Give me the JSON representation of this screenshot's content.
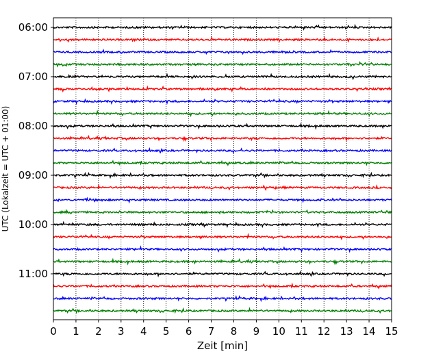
{
  "chart_data": {
    "type": "line",
    "chart_kind": "helicorder (seismogram drum plot)",
    "xlabel": "Zeit  [min]",
    "ylabel": "UTC (Lokalzeit = UTC + 01:00)",
    "xlim": [
      0,
      15
    ],
    "x_ticks": [
      "0",
      "1",
      "2",
      "3",
      "4",
      "5",
      "6",
      "7",
      "8",
      "9",
      "10",
      "11",
      "12",
      "13",
      "14",
      "15"
    ],
    "y_tick_labels": [
      "06:00",
      "07:00",
      "08:00",
      "09:00",
      "10:00",
      "11:00"
    ],
    "vertical_grid": "dotted, every 1 min",
    "trace_interval_minutes": 15,
    "trace_colors": [
      "#000000",
      "#ff0000",
      "#0000ff",
      "#008000"
    ],
    "traces": [
      {
        "start": "06:00",
        "color": "#000000"
      },
      {
        "start": "06:15",
        "color": "#ff0000"
      },
      {
        "start": "06:30",
        "color": "#0000ff"
      },
      {
        "start": "06:45",
        "color": "#008000"
      },
      {
        "start": "07:00",
        "color": "#000000"
      },
      {
        "start": "07:15",
        "color": "#ff0000"
      },
      {
        "start": "07:30",
        "color": "#0000ff"
      },
      {
        "start": "07:45",
        "color": "#008000"
      },
      {
        "start": "08:00",
        "color": "#000000"
      },
      {
        "start": "08:15",
        "color": "#ff0000"
      },
      {
        "start": "08:30",
        "color": "#0000ff"
      },
      {
        "start": "08:45",
        "color": "#008000"
      },
      {
        "start": "09:00",
        "color": "#000000"
      },
      {
        "start": "09:15",
        "color": "#ff0000"
      },
      {
        "start": "09:30",
        "color": "#0000ff"
      },
      {
        "start": "09:45",
        "color": "#008000"
      },
      {
        "start": "10:00",
        "color": "#000000"
      },
      {
        "start": "10:15",
        "color": "#ff0000"
      },
      {
        "start": "10:30",
        "color": "#0000ff"
      },
      {
        "start": "10:45",
        "color": "#008000"
      },
      {
        "start": "11:00",
        "color": "#000000"
      },
      {
        "start": "11:15",
        "color": "#ff0000"
      },
      {
        "start": "11:30",
        "color": "#0000ff"
      },
      {
        "start": "11:45",
        "color": "#008000"
      }
    ]
  }
}
